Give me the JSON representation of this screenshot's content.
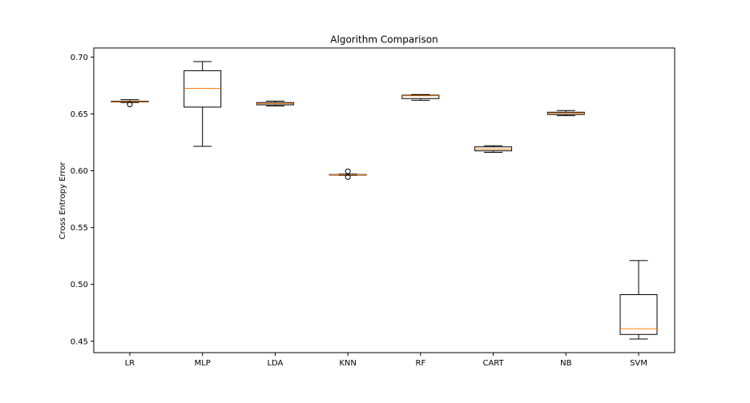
{
  "chart_data": {
    "type": "box",
    "title": "Algorithm Comparison",
    "xlabel": "",
    "ylabel": "Cross Entropy Error",
    "ylim": [
      0.44,
      0.708
    ],
    "yticks": [
      0.45,
      0.5,
      0.55,
      0.6,
      0.65,
      0.7
    ],
    "ytick_labels": [
      "0.45",
      "0.50",
      "0.55",
      "0.60",
      "0.65",
      "0.70"
    ],
    "grid": false,
    "colors": {
      "box": "#000000",
      "median": "#ff7f0e",
      "flier": "#000000"
    },
    "categories": [
      "LR",
      "MLP",
      "LDA",
      "KNN",
      "RF",
      "CART",
      "NB",
      "SVM"
    ],
    "boxes": [
      {
        "label": "LR",
        "whisker_low": 0.66,
        "q1": 0.6605,
        "median": 0.6608,
        "q3": 0.6612,
        "whisker_high": 0.6625,
        "fliers": [
          0.6583
        ]
      },
      {
        "label": "MLP",
        "whisker_low": 0.6215,
        "q1": 0.656,
        "median": 0.6725,
        "q3": 0.688,
        "whisker_high": 0.696,
        "fliers": []
      },
      {
        "label": "LDA",
        "whisker_low": 0.657,
        "q1": 0.658,
        "median": 0.659,
        "q3": 0.66,
        "whisker_high": 0.6612,
        "fliers": []
      },
      {
        "label": "KNN",
        "whisker_low": 0.596,
        "q1": 0.5962,
        "median": 0.5964,
        "q3": 0.5967,
        "whisker_high": 0.597,
        "fliers": [
          0.5945,
          0.5995
        ]
      },
      {
        "label": "RF",
        "whisker_low": 0.662,
        "q1": 0.6635,
        "median": 0.666,
        "q3": 0.6665,
        "whisker_high": 0.667,
        "fliers": []
      },
      {
        "label": "CART",
        "whisker_low": 0.6162,
        "q1": 0.6175,
        "median": 0.619,
        "q3": 0.621,
        "whisker_high": 0.622,
        "fliers": []
      },
      {
        "label": "NB",
        "whisker_low": 0.6485,
        "q1": 0.6495,
        "median": 0.6505,
        "q3": 0.6515,
        "whisker_high": 0.653,
        "fliers": []
      },
      {
        "label": "SVM",
        "whisker_low": 0.452,
        "q1": 0.456,
        "median": 0.461,
        "q3": 0.491,
        "whisker_high": 0.521,
        "fliers": []
      }
    ]
  }
}
